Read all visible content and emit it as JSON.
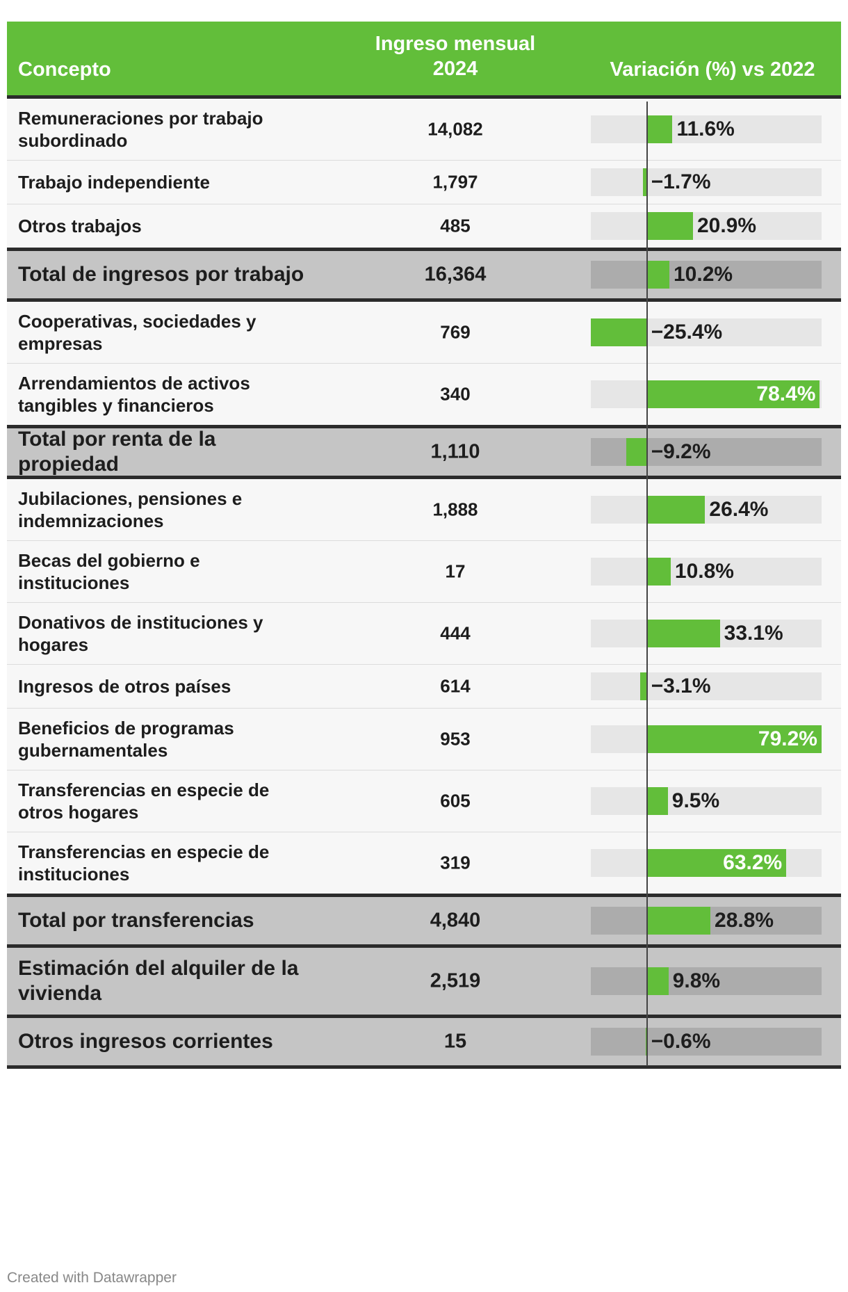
{
  "header": {
    "concept": "Concepto",
    "income_line1": "Ingreso mensual",
    "income_line2": "2024",
    "variation": "Variación (%) vs 2022"
  },
  "colors": {
    "header_bg": "#62be3a",
    "bar": "#62be3a",
    "total_row_bg": "#c5c5c5",
    "rule": "#2b2b2b"
  },
  "chart_data": {
    "type": "table",
    "title": "",
    "columns": [
      "Concepto",
      "Ingreso mensual 2024",
      "Variación (%) vs 2022"
    ],
    "xlim": [
      -25.4,
      79.2
    ],
    "rows": [
      {
        "concept": "Remuneraciones por trabajo subordinado",
        "income": "14,082",
        "variation": 11.6,
        "label": "11.6%",
        "total": false
      },
      {
        "concept": "Trabajo independiente",
        "income": "1,797",
        "variation": -1.7,
        "label": "−1.7%",
        "total": false
      },
      {
        "concept": "Otros trabajos",
        "income": "485",
        "variation": 20.9,
        "label": "20.9%",
        "total": false
      },
      {
        "concept": "Total de ingresos por trabajo",
        "income": "16,364",
        "variation": 10.2,
        "label": "10.2%",
        "total": true
      },
      {
        "concept": "Cooperativas, sociedades y empresas",
        "income": "769",
        "variation": -25.4,
        "label": "−25.4%",
        "total": false
      },
      {
        "concept": "Arrendamientos de activos tangibles y financieros",
        "income": "340",
        "variation": 78.4,
        "label": "78.4%",
        "total": false
      },
      {
        "concept": "Total por renta de la propiedad",
        "income": "1,110",
        "variation": -9.2,
        "label": "−9.2%",
        "total": true
      },
      {
        "concept": "Jubilaciones, pensiones e indemnizaciones",
        "income": "1,888",
        "variation": 26.4,
        "label": "26.4%",
        "total": false
      },
      {
        "concept": "Becas del gobierno e instituciones",
        "income": "17",
        "variation": 10.8,
        "label": "10.8%",
        "total": false
      },
      {
        "concept": "Donativos de instituciones y hogares",
        "income": "444",
        "variation": 33.1,
        "label": "33.1%",
        "total": false
      },
      {
        "concept": "Ingresos de otros países",
        "income": "614",
        "variation": -3.1,
        "label": "−3.1%",
        "total": false
      },
      {
        "concept": "Beneficios de programas gubernamentales",
        "income": "953",
        "variation": 79.2,
        "label": "79.2%",
        "total": false
      },
      {
        "concept": "Transferencias en especie de otros hogares",
        "income": "605",
        "variation": 9.5,
        "label": "9.5%",
        "total": false
      },
      {
        "concept": "Transferencias en especie de instituciones",
        "income": "319",
        "variation": 63.2,
        "label": "63.2%",
        "total": false
      },
      {
        "concept": "Total por transferencias",
        "income": "4,840",
        "variation": 28.8,
        "label": "28.8%",
        "total": true
      },
      {
        "concept": "Estimación del alquiler de la vivienda",
        "income": "2,519",
        "variation": 9.8,
        "label": "9.8%",
        "total": true
      },
      {
        "concept": "Otros ingresos corrientes",
        "income": "15",
        "variation": -0.6,
        "label": "−0.6%",
        "total": true
      }
    ]
  },
  "footer": {
    "credit": "Created with Datawrapper"
  }
}
